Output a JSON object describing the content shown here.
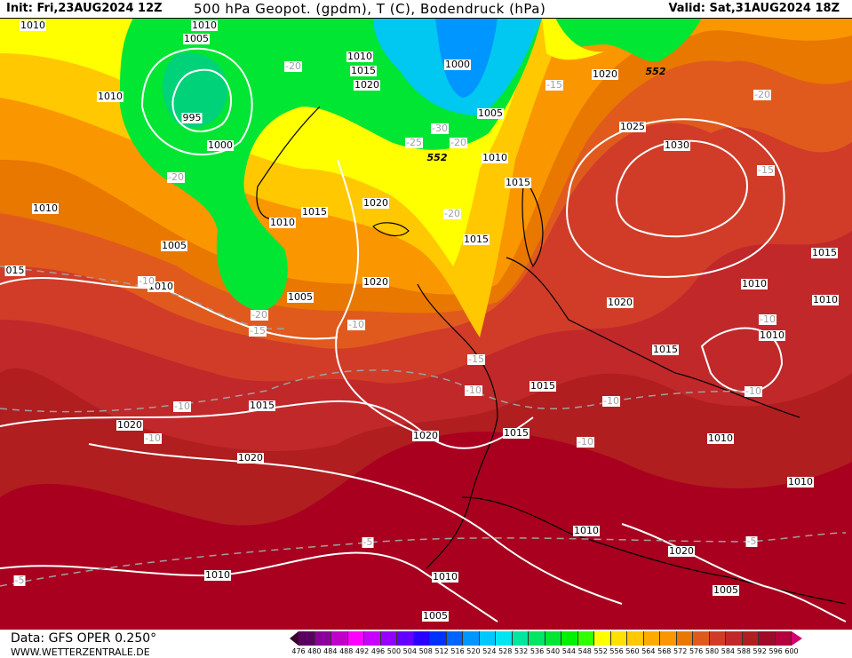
{
  "header": {
    "init": "Init: Fri,23AUG2024 12Z",
    "title": "500 hPa Geopot. (gpdm), T (C), Bodendruck (hPa)",
    "valid": "Valid: Sat,31AUG2024 18Z"
  },
  "footer": {
    "source": "Data: GFS OPER 0.250°",
    "site": "WWW.WETTERZENTRALE.DE"
  },
  "colorbar": {
    "ticks": [
      "476",
      "480",
      "484",
      "488",
      "492",
      "496",
      "500",
      "504",
      "508",
      "512",
      "516",
      "520",
      "524",
      "528",
      "532",
      "536",
      "540",
      "544",
      "548",
      "552",
      "556",
      "560",
      "564",
      "568",
      "572",
      "576",
      "580",
      "584",
      "588",
      "592",
      "596",
      "600"
    ],
    "colors": [
      "#5a0060",
      "#8a0098",
      "#c000c8",
      "#ff00ff",
      "#c800ff",
      "#9600ff",
      "#6400ff",
      "#2a00ff",
      "#0032ff",
      "#0064ff",
      "#0096ff",
      "#00c8ff",
      "#00e6f0",
      "#00e6a0",
      "#00e664",
      "#00e632",
      "#00f000",
      "#32ff00",
      "#ffff00",
      "#ffe100",
      "#ffc800",
      "#ffaa00",
      "#fa9600",
      "#e87800",
      "#e05a1e",
      "#d03c28",
      "#c0282a",
      "#b01e20",
      "#a00a28",
      "#b4003c"
    ],
    "under_color": "#3a0030",
    "over_color": "#d2006e"
  },
  "map": {
    "pressure_labels": [
      "1010",
      "1010",
      "1005",
      "1010",
      "995",
      "1000",
      "1010",
      "1015",
      "1020",
      "1000",
      "1005",
      "1010",
      "1010",
      "1010",
      "1015",
      "1020",
      "1015",
      "1015",
      "1005",
      "015",
      "1010",
      "1005",
      "1020",
      "1020",
      "1025",
      "1030",
      "1020",
      "1015",
      "1010",
      "1010",
      "1010",
      "1015",
      "1015",
      "1015",
      "1020",
      "1020",
      "1015",
      "1010",
      "1020",
      "1010",
      "1010",
      "1020",
      "1010",
      "1010",
      "1005",
      "1005"
    ],
    "temperature_labels": [
      "-20",
      "-30",
      "-25",
      "-20",
      "-20",
      "-20",
      "-10",
      "-20",
      "-15",
      "-10",
      "-15",
      "-20",
      "-15",
      "-10",
      "-15",
      "-10",
      "-10",
      "-10",
      "-10",
      "-10",
      "-10",
      "-5",
      "-5",
      "-5"
    ],
    "geopotential_labels": [
      "552",
      "552"
    ]
  }
}
